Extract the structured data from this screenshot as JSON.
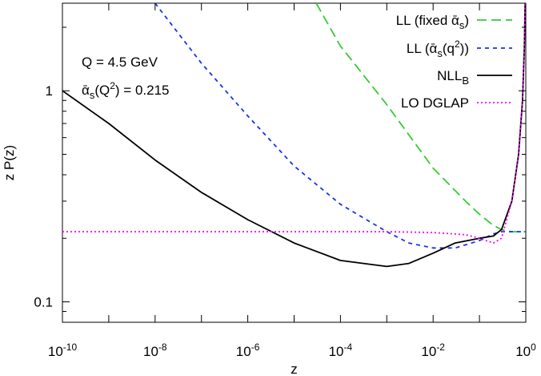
{
  "chart_data": {
    "type": "line",
    "xlabel": "z",
    "ylabel": "z P(z)",
    "x_scale": "log",
    "y_scale": "log",
    "xlim": [
      1e-10,
      1
    ],
    "ylim": [
      0.08,
      2.6
    ],
    "x_ticks": [
      {
        "value": 1e-10,
        "base": "10",
        "exp": "-10"
      },
      {
        "value": 1e-08,
        "base": "10",
        "exp": "-8"
      },
      {
        "value": 1e-06,
        "base": "10",
        "exp": "-6"
      },
      {
        "value": 0.0001,
        "base": "10",
        "exp": "-4"
      },
      {
        "value": 0.01,
        "base": "10",
        "exp": "-2"
      },
      {
        "value": 1,
        "base": "10",
        "exp": "0"
      }
    ],
    "y_ticks": [
      {
        "value": 1,
        "label": "1"
      },
      {
        "value": 0.1,
        "label": "0.1"
      }
    ],
    "annotations": [
      {
        "text": "Q = 4.5 GeV"
      },
      {
        "text": "ᾱs(Q²) = 0.215"
      }
    ],
    "legend_position": "top-right",
    "series": [
      {
        "name": "LL (fixed ᾱs)",
        "color": "#33cc33",
        "dash": "long-dash",
        "points": [
          [
            3e-05,
            2.6
          ],
          [
            0.0001,
            1.63
          ],
          [
            0.001,
            0.86
          ],
          [
            0.01,
            0.43
          ],
          [
            0.05,
            0.3
          ],
          [
            0.1,
            0.26
          ],
          [
            0.2,
            0.23
          ],
          [
            0.3,
            0.22
          ],
          [
            0.5,
            0.215
          ],
          [
            1,
            0.215
          ]
        ]
      },
      {
        "name": "LL (ᾱs(q²))",
        "color": "#1a33e6",
        "dash": "short-dash",
        "points": [
          [
            1e-08,
            2.6
          ],
          [
            1e-07,
            1.35
          ],
          [
            1e-06,
            0.76
          ],
          [
            1e-05,
            0.44
          ],
          [
            0.0001,
            0.29
          ],
          [
            0.001,
            0.215
          ],
          [
            0.003,
            0.19
          ],
          [
            0.01,
            0.18
          ],
          [
            0.03,
            0.18
          ],
          [
            0.1,
            0.195
          ],
          [
            0.2,
            0.21
          ],
          [
            0.3,
            0.215
          ],
          [
            0.5,
            0.215
          ],
          [
            1,
            0.215
          ]
        ]
      },
      {
        "name": "NLLB",
        "color": "#000000",
        "dash": "solid",
        "points": [
          [
            1e-10,
            1.0
          ],
          [
            1e-09,
            0.7
          ],
          [
            1e-08,
            0.47
          ],
          [
            1e-07,
            0.33
          ],
          [
            1e-06,
            0.245
          ],
          [
            1e-05,
            0.19
          ],
          [
            0.0001,
            0.157
          ],
          [
            0.001,
            0.147
          ],
          [
            0.003,
            0.152
          ],
          [
            0.01,
            0.17
          ],
          [
            0.03,
            0.19
          ],
          [
            0.1,
            0.2
          ],
          [
            0.2,
            0.205
          ],
          [
            0.3,
            0.22
          ],
          [
            0.5,
            0.3
          ],
          [
            0.7,
            0.5
          ],
          [
            0.85,
            0.9
          ],
          [
            0.93,
            1.6
          ],
          [
            0.97,
            2.6
          ]
        ]
      },
      {
        "name": "LO DGLAP",
        "color": "#ff00ff",
        "dash": "dotted",
        "points": [
          [
            1e-10,
            0.215
          ],
          [
            0.001,
            0.215
          ],
          [
            0.01,
            0.213
          ],
          [
            0.05,
            0.208
          ],
          [
            0.1,
            0.2
          ],
          [
            0.2,
            0.19
          ],
          [
            0.3,
            0.2
          ],
          [
            0.5,
            0.3
          ],
          [
            0.7,
            0.5
          ],
          [
            0.85,
            0.9
          ],
          [
            0.93,
            1.6
          ],
          [
            0.97,
            2.6
          ]
        ]
      }
    ],
    "legend": [
      {
        "prefix": "LL (fixed ",
        "sym": "ᾱ",
        "sub": "s",
        "suffix": ")",
        "sup": "",
        "tail": ""
      },
      {
        "prefix": "LL (",
        "sym": "ᾱ",
        "sub": "s",
        "suffix": "(q",
        "sup": "2",
        "tail": "))"
      },
      {
        "prefix": "NLL",
        "sym": "",
        "sub": "B",
        "suffix": "",
        "sup": "",
        "tail": ""
      },
      {
        "prefix": "LO DGLAP",
        "sym": "",
        "sub": "",
        "suffix": "",
        "sup": "",
        "tail": ""
      }
    ]
  }
}
